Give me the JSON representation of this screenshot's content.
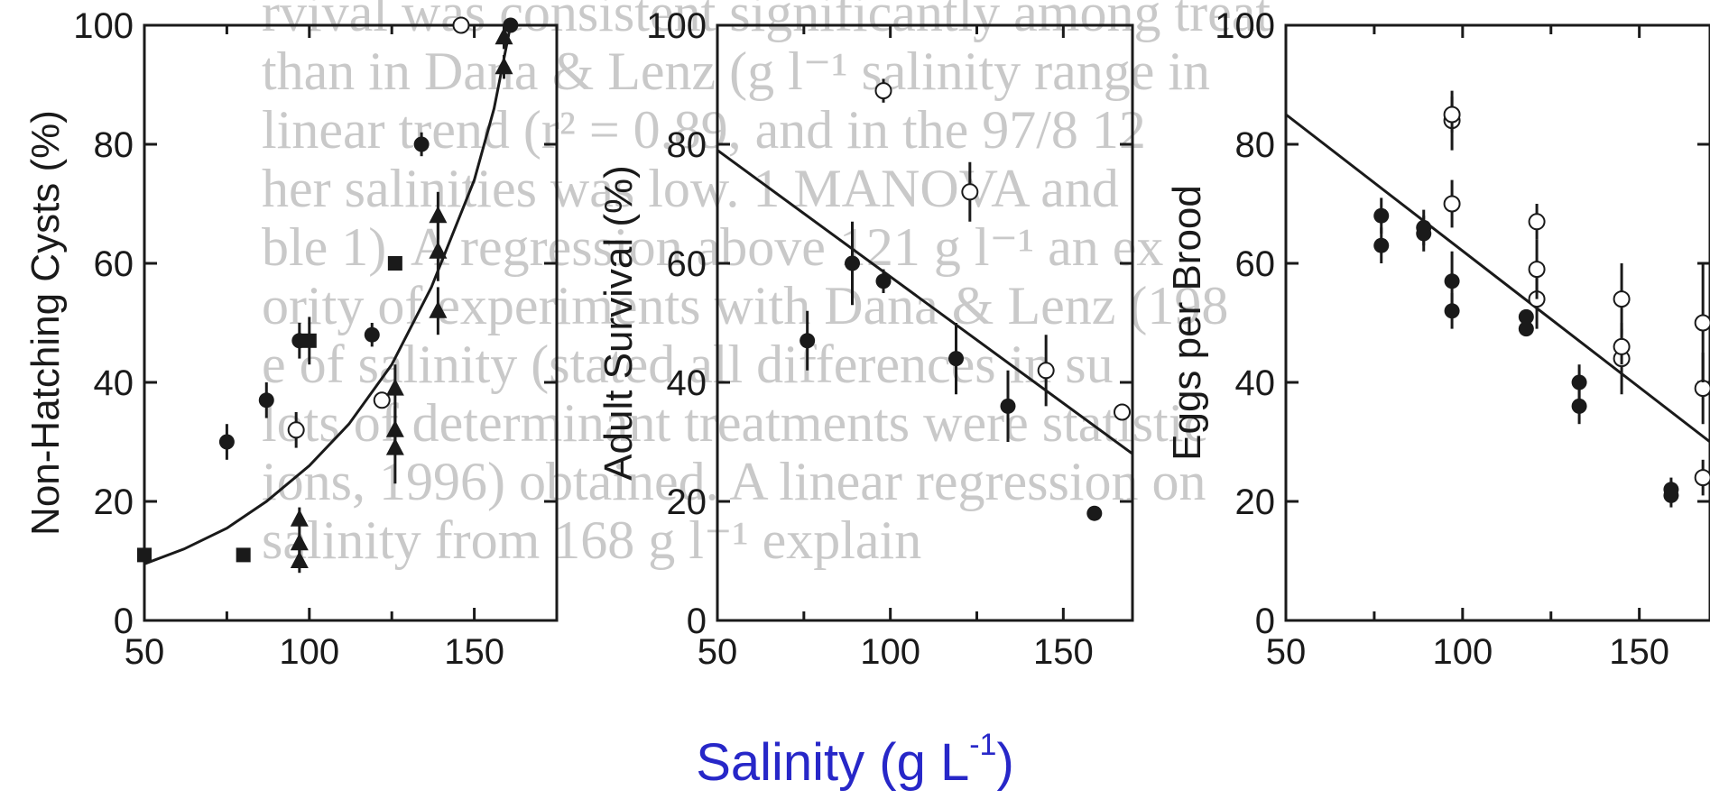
{
  "background_text": [
    "rvival was consistent significantly among treat",
    "than in Dana & Lenz (g l⁻¹ salinity range in",
    "linear trend (r² = 0.89, and in the 97/8 12",
    "her salinities was low. 1 MANOVA and",
    "ble 1). A regression above 121 g l⁻¹ an ex",
    "ority of experiments with Dana & Lenz (198",
    "e of salinity (stated all differences in su",
    "lots of determinant treatments were statistic",
    "ions, 1996) obtained. A linear regression on",
    "salinity from 168 g l⁻¹ explain"
  ],
  "x_axis_title": {
    "main": "Salinity (g L",
    "sup": "-1",
    "close": ")"
  },
  "colors": {
    "title_blue": "#2727c8",
    "ink": "#1a1a1a",
    "background_text": "#c9c9c9"
  },
  "chart_data": [
    {
      "type": "scatter",
      "ylabel": "Non-Hatching Cysts (%)",
      "xlim": [
        50,
        175
      ],
      "ylim": [
        0,
        100
      ],
      "xticks": [
        50,
        100,
        150
      ],
      "yticks": [
        0,
        20,
        40,
        60,
        80,
        100
      ],
      "series": [
        {
          "marker": "filled-circle",
          "points": [
            {
              "x": 75,
              "y": 30,
              "err": 3
            },
            {
              "x": 87,
              "y": 37,
              "err": 3
            },
            {
              "x": 97,
              "y": 47,
              "err": 3
            },
            {
              "x": 119,
              "y": 48,
              "err": 2
            },
            {
              "x": 134,
              "y": 80,
              "err": 2
            },
            {
              "x": 161,
              "y": 100,
              "err": 1
            }
          ]
        },
        {
          "marker": "open-circle",
          "points": [
            {
              "x": 96,
              "y": 32,
              "err": 3
            },
            {
              "x": 122,
              "y": 37,
              "err": 1
            },
            {
              "x": 146,
              "y": 100,
              "err": 0
            }
          ]
        },
        {
          "marker": "filled-square",
          "points": [
            {
              "x": 50,
              "y": 11,
              "err": 0
            },
            {
              "x": 80,
              "y": 11,
              "err": 0
            },
            {
              "x": 100,
              "y": 47,
              "err": 4
            },
            {
              "x": 126,
              "y": 60,
              "err": 0
            }
          ]
        },
        {
          "marker": "filled-triangle",
          "points": [
            {
              "x": 97,
              "y": 10,
              "err": 2
            },
            {
              "x": 97,
              "y": 13,
              "err": 2
            },
            {
              "x": 97,
              "y": 17,
              "err": 2
            },
            {
              "x": 126,
              "y": 29,
              "err": 6
            },
            {
              "x": 126,
              "y": 32,
              "err": 4
            },
            {
              "x": 126,
              "y": 39,
              "err": 4
            },
            {
              "x": 139,
              "y": 52,
              "err": 4
            },
            {
              "x": 139,
              "y": 62,
              "err": 5
            },
            {
              "x": 139,
              "y": 68,
              "err": 4
            },
            {
              "x": 159,
              "y": 93,
              "err": 2
            },
            {
              "x": 159,
              "y": 98,
              "err": 2
            }
          ]
        }
      ],
      "fit": {
        "type": "curve",
        "points": [
          [
            50,
            9.5
          ],
          [
            62,
            12
          ],
          [
            75,
            15.5
          ],
          [
            87,
            20
          ],
          [
            100,
            26
          ],
          [
            112,
            33
          ],
          [
            125,
            43
          ],
          [
            137,
            56
          ],
          [
            150,
            74
          ],
          [
            156,
            86
          ],
          [
            161,
            100
          ]
        ]
      }
    },
    {
      "type": "scatter",
      "ylabel": "Adult Survival (%)",
      "xlim": [
        50,
        170
      ],
      "ylim": [
        0,
        100
      ],
      "xticks": [
        50,
        100,
        150
      ],
      "yticks": [
        0,
        20,
        40,
        60,
        80,
        100
      ],
      "series": [
        {
          "marker": "filled-circle",
          "points": [
            {
              "x": 76,
              "y": 47,
              "err": 5
            },
            {
              "x": 89,
              "y": 60,
              "err": 7
            },
            {
              "x": 98,
              "y": 57,
              "err": 2
            },
            {
              "x": 119,
              "y": 44,
              "err": 6
            },
            {
              "x": 134,
              "y": 36,
              "err": 6
            },
            {
              "x": 159,
              "y": 18,
              "err": 0
            }
          ]
        },
        {
          "marker": "open-circle",
          "points": [
            {
              "x": 98,
              "y": 89,
              "err": 2
            },
            {
              "x": 123,
              "y": 72,
              "err": 5
            },
            {
              "x": 145,
              "y": 42,
              "err": 6
            },
            {
              "x": 167,
              "y": 35,
              "err": 1
            }
          ]
        }
      ],
      "fit": {
        "type": "line",
        "points": [
          [
            50,
            79
          ],
          [
            170,
            28
          ]
        ]
      }
    },
    {
      "type": "scatter",
      "ylabel": "Eggs per Brood",
      "xlim": [
        50,
        170
      ],
      "ylim": [
        0,
        100
      ],
      "xticks": [
        50,
        100,
        150
      ],
      "yticks": [
        0,
        20,
        40,
        60,
        80,
        100
      ],
      "series": [
        {
          "marker": "filled-circle",
          "points": [
            {
              "x": 77,
              "y": 63,
              "err": 3
            },
            {
              "x": 77,
              "y": 68,
              "err": 3
            },
            {
              "x": 89,
              "y": 65,
              "err": 3
            },
            {
              "x": 89,
              "y": 66,
              "err": 3
            },
            {
              "x": 97,
              "y": 52,
              "err": 3
            },
            {
              "x": 97,
              "y": 57,
              "err": 5
            },
            {
              "x": 118,
              "y": 49,
              "err": 1
            },
            {
              "x": 118,
              "y": 51,
              "err": 1
            },
            {
              "x": 133,
              "y": 36,
              "err": 3
            },
            {
              "x": 133,
              "y": 40,
              "err": 3
            },
            {
              "x": 159,
              "y": 21,
              "err": 2
            },
            {
              "x": 159,
              "y": 22,
              "err": 2
            }
          ]
        },
        {
          "marker": "open-circle",
          "points": [
            {
              "x": 97,
              "y": 70,
              "err": 4
            },
            {
              "x": 97,
              "y": 84,
              "err": 5
            },
            {
              "x": 97,
              "y": 85,
              "err": 3
            },
            {
              "x": 121,
              "y": 54,
              "err": 5
            },
            {
              "x": 121,
              "y": 59,
              "err": 5
            },
            {
              "x": 121,
              "y": 67,
              "err": 3
            },
            {
              "x": 145,
              "y": 44,
              "err": 6
            },
            {
              "x": 145,
              "y": 46,
              "err": 3
            },
            {
              "x": 145,
              "y": 54,
              "err": 6
            },
            {
              "x": 168,
              "y": 24,
              "err": 3
            },
            {
              "x": 168,
              "y": 39,
              "err": 6
            },
            {
              "x": 168,
              "y": 50,
              "err": 10
            }
          ]
        }
      ],
      "fit": {
        "type": "line",
        "points": [
          [
            50,
            85
          ],
          [
            170,
            30
          ]
        ]
      }
    }
  ]
}
